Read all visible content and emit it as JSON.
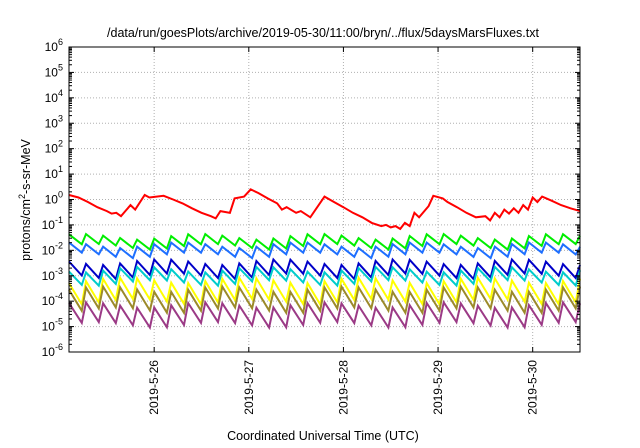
{
  "chart_data": {
    "type": "line",
    "title": "/data/run/goesPlots/archive/2019-05-30/11:00/bryn/../flux/5daysMarsFluxes.txt",
    "xlabel": "Coordinated Universal Time (UTC)",
    "ylabel": "protons/cm2-s-sr-MeV",
    "ylabel_parts": {
      "base": "protons/cm",
      "sup": "2",
      "rest": "-s-sr-MeV"
    },
    "x_range_days": [
      25.1,
      30.5
    ],
    "x_ticks": [
      {
        "label": "2019-5-26",
        "day": 26
      },
      {
        "label": "2019-5-27",
        "day": 27
      },
      {
        "label": "2019-5-28",
        "day": 28
      },
      {
        "label": "2019-5-29",
        "day": 29
      },
      {
        "label": "2019-5-30",
        "day": 30
      }
    ],
    "y_scale": "log",
    "ylim": [
      1e-06,
      1000000.0
    ],
    "y_ticks": [
      {
        "base": "10",
        "exp": "-6"
      },
      {
        "base": "10",
        "exp": "-5"
      },
      {
        "base": "10",
        "exp": "-4"
      },
      {
        "base": "10",
        "exp": "-3"
      },
      {
        "base": "10",
        "exp": "-2"
      },
      {
        "base": "10",
        "exp": "-1"
      },
      {
        "base": "10",
        "exp": "0"
      },
      {
        "base": "10",
        "exp": "1"
      },
      {
        "base": "10",
        "exp": "2"
      },
      {
        "base": "10",
        "exp": "3"
      },
      {
        "base": "10",
        "exp": "4"
      },
      {
        "base": "10",
        "exp": "5"
      },
      {
        "base": "10",
        "exp": "6"
      }
    ],
    "grid": true,
    "legend": "none",
    "series": [
      {
        "color": "#ff0000",
        "x": [
          25.1,
          25.2,
          25.3,
          25.4,
          25.5,
          25.55,
          25.6,
          25.65,
          25.75,
          25.8,
          25.9,
          25.95,
          26.1,
          26.2,
          26.3,
          26.4,
          26.5,
          26.6,
          26.65,
          26.7,
          26.8,
          26.85,
          26.95,
          27.02,
          27.1,
          27.2,
          27.3,
          27.35,
          27.4,
          27.5,
          27.55,
          27.65,
          27.8,
          27.9,
          28.0,
          28.1,
          28.2,
          28.3,
          28.4,
          28.45,
          28.5,
          28.55,
          28.6,
          28.65,
          28.7,
          28.75,
          28.8,
          28.9,
          28.95,
          29.05,
          29.1,
          29.2,
          29.3,
          29.4,
          29.5,
          29.55,
          29.6,
          29.65,
          29.7,
          29.75,
          29.8,
          29.85,
          29.9,
          29.95,
          30.0,
          30.05,
          30.1,
          30.2,
          30.3,
          30.4,
          30.5
        ],
        "y": [
          1.5,
          1.2,
          0.8,
          0.5,
          0.35,
          0.28,
          0.3,
          0.22,
          0.6,
          0.4,
          1.5,
          1.2,
          1.4,
          1.0,
          0.7,
          0.45,
          0.3,
          0.22,
          0.18,
          0.35,
          0.3,
          1.1,
          1.3,
          2.5,
          1.8,
          1.1,
          0.7,
          0.4,
          0.5,
          0.3,
          0.35,
          0.2,
          1.3,
          0.8,
          0.5,
          0.3,
          0.2,
          0.12,
          0.09,
          0.1,
          0.08,
          0.09,
          0.07,
          0.12,
          0.09,
          0.3,
          0.2,
          0.55,
          1.4,
          1.1,
          0.8,
          0.5,
          0.3,
          0.2,
          0.22,
          0.15,
          0.3,
          0.2,
          0.4,
          0.28,
          0.45,
          0.3,
          0.6,
          0.4,
          1.2,
          0.8,
          1.3,
          0.9,
          0.6,
          0.45,
          0.35
        ]
      },
      {
        "color": "#00ee00",
        "base": 0.022,
        "peak_factor": 1.6,
        "trough_factor": 0.65,
        "cycles": 30
      },
      {
        "color": "#1e6fff",
        "base": 0.011,
        "peak_factor": 1.5,
        "trough_factor": 0.6,
        "cycles": 30
      },
      {
        "color": "#0000c8",
        "base": 0.0022,
        "peak_factor": 1.6,
        "trough_factor": 0.45,
        "cycles": 30
      },
      {
        "color": "#00cccc",
        "base": 0.0012,
        "peak_factor": 1.5,
        "trough_factor": 0.45,
        "cycles": 30
      },
      {
        "color": "#ffff00",
        "base": 0.00028,
        "peak_factor": 2.4,
        "trough_factor": 0.35,
        "cycles": 30
      },
      {
        "color": "#9b8a2a",
        "base": 0.00015,
        "peak_factor": 2.0,
        "trough_factor": 0.3,
        "cycles": 30
      },
      {
        "color": "#9b3a86",
        "base": 3e-05,
        "peak_factor": 2.4,
        "trough_factor": 0.4,
        "cycles": 30
      }
    ]
  }
}
